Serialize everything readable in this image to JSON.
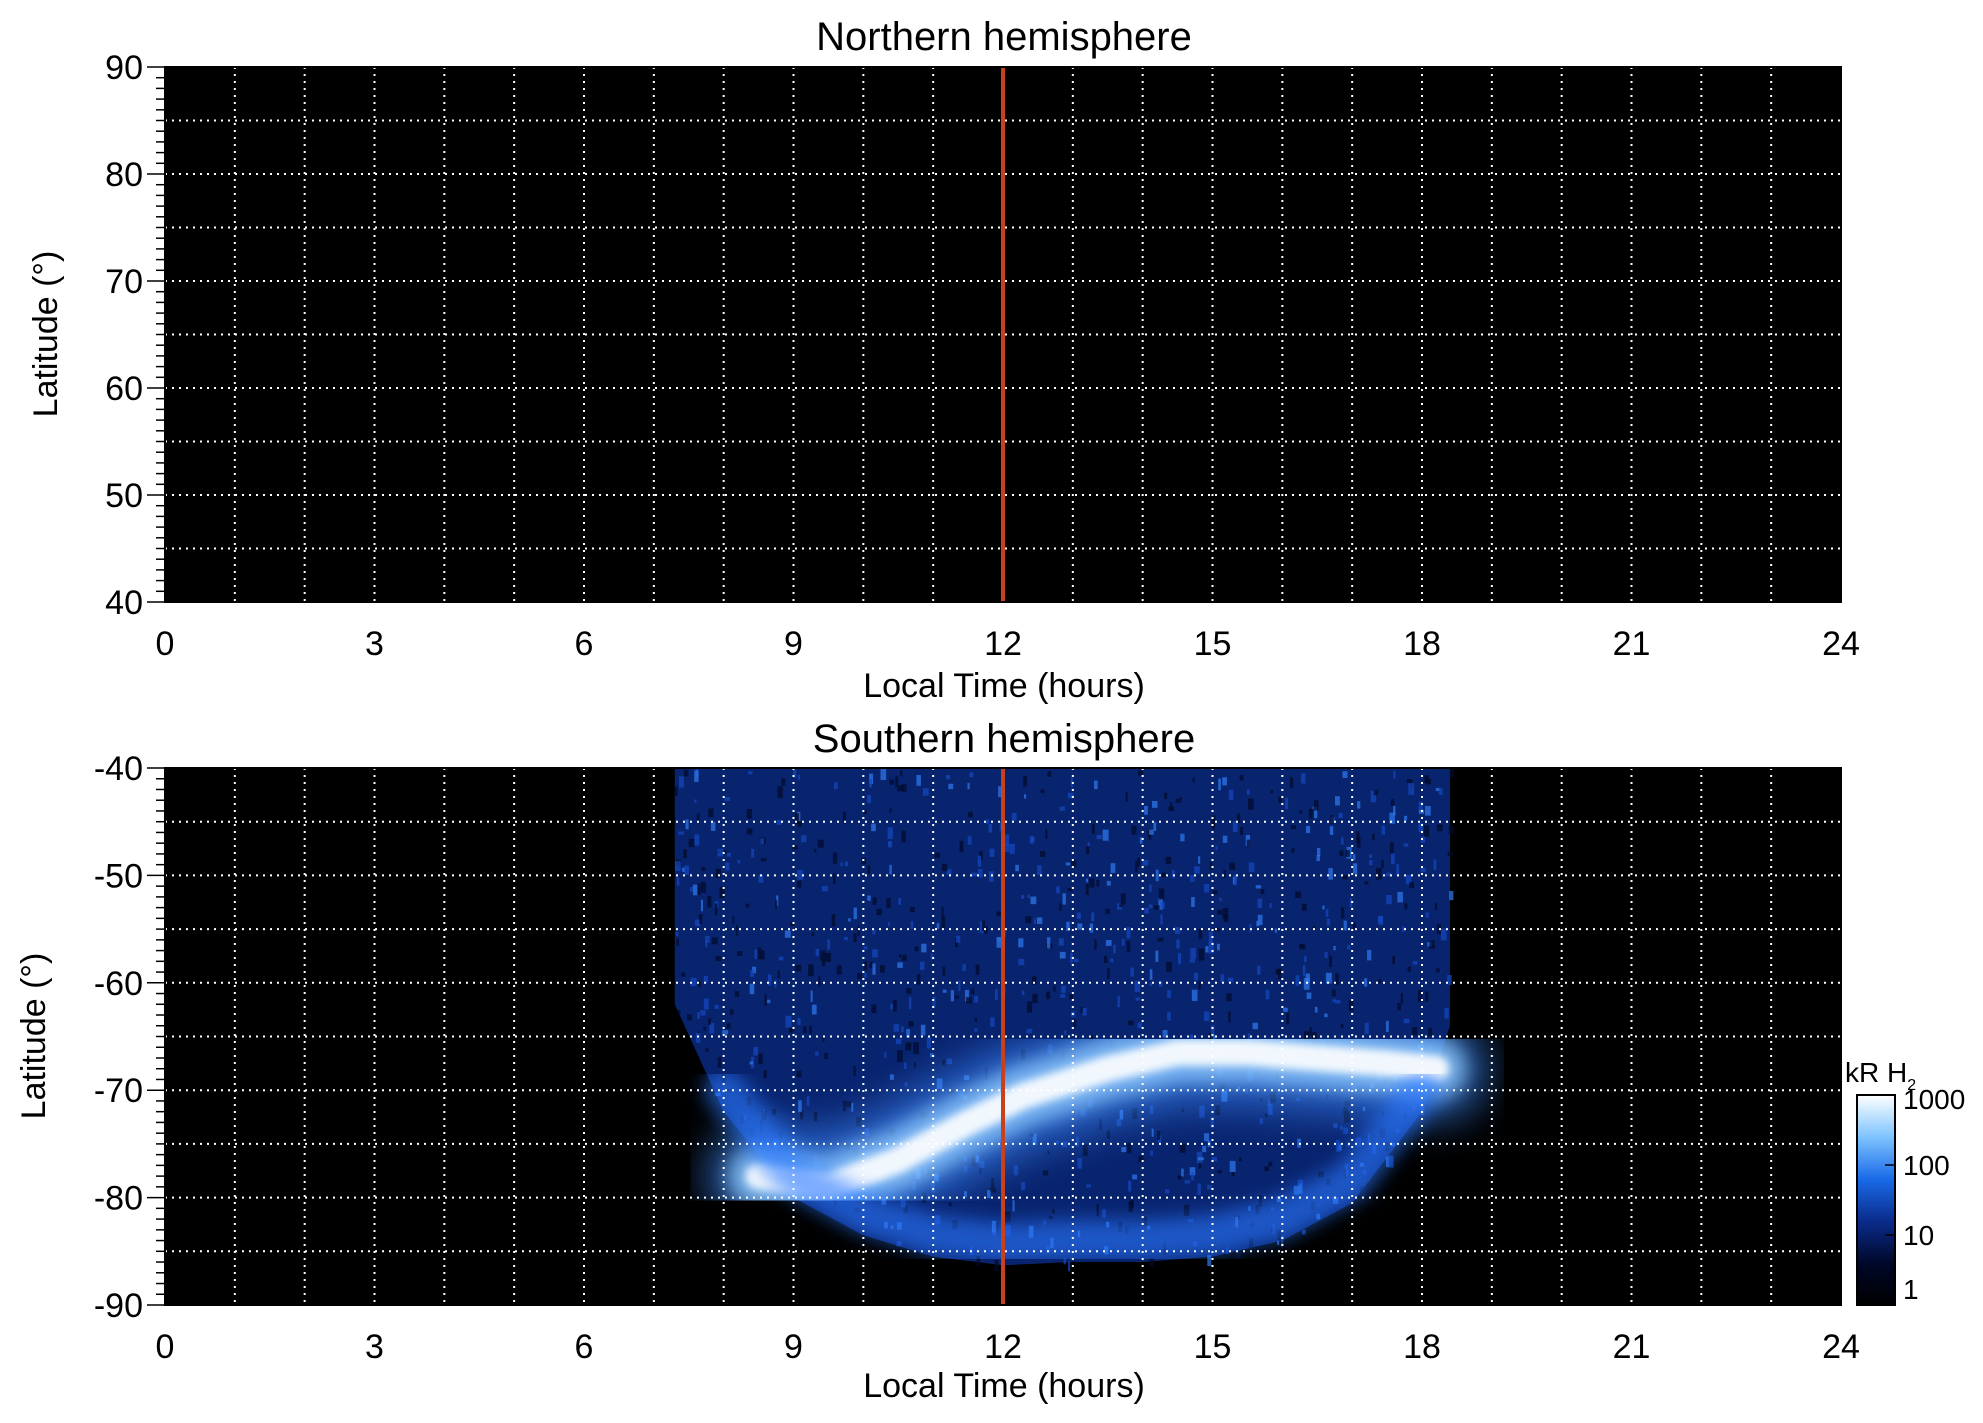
{
  "chart_data": [
    {
      "type": "heatmap",
      "title": "Northern hemisphere",
      "xlabel": "Local Time (hours)",
      "ylabel": "Latitude (°)",
      "xlim": [
        0,
        24
      ],
      "ylim": [
        40,
        90
      ],
      "x_ticks": [
        "0",
        "3",
        "6",
        "9",
        "12",
        "15",
        "18",
        "21",
        "24"
      ],
      "y_ticks": [
        "40",
        "50",
        "60",
        "70",
        "80",
        "90"
      ],
      "grid": true,
      "marker_line_local_time": 12,
      "marker_color": "#c8401c",
      "emission": "none"
    },
    {
      "type": "heatmap",
      "title": "Southern hemisphere",
      "xlabel": "Local Time (hours)",
      "ylabel": "Latitude (°)",
      "xlim": [
        0,
        24
      ],
      "ylim": [
        -90,
        -40
      ],
      "x_ticks": [
        "0",
        "3",
        "6",
        "9",
        "12",
        "15",
        "18",
        "21",
        "24"
      ],
      "y_ticks": [
        "-90",
        "-80",
        "-70",
        "-60",
        "-50",
        "-40"
      ],
      "grid": true,
      "marker_line_local_time": 12,
      "marker_color": "#c8401c",
      "coverage_local_time_range": [
        7.3,
        18.4
      ],
      "coverage_lower_latitude_edge": [
        [
          7.3,
          -62
        ],
        [
          8.0,
          -72
        ],
        [
          9.0,
          -80
        ],
        [
          10.0,
          -83.5
        ],
        [
          11.0,
          -85.5
        ],
        [
          12.0,
          -86.3
        ],
        [
          13.0,
          -86
        ],
        [
          14.0,
          -86
        ],
        [
          15.0,
          -85.5
        ],
        [
          16.0,
          -84
        ],
        [
          17.0,
          -80.5
        ],
        [
          18.0,
          -72
        ],
        [
          18.4,
          -64
        ]
      ],
      "auroral_oval_center": [
        [
          8.5,
          -78
        ],
        [
          9.5,
          -79
        ],
        [
          10.5,
          -76.5
        ],
        [
          11.5,
          -73
        ],
        [
          12.3,
          -70.5
        ],
        [
          13.5,
          -68
        ],
        [
          14.5,
          -66.5
        ],
        [
          15.5,
          -66.5
        ],
        [
          16.5,
          -67
        ],
        [
          17.5,
          -67.5
        ],
        [
          18.2,
          -68
        ]
      ],
      "auroral_peak_brightness_kR": 1000,
      "background_brightness_kR": 10
    }
  ],
  "colorbar": {
    "title": "kR H",
    "title_subscript": "2",
    "scale": "log",
    "ticks": [
      "1",
      "10",
      "100",
      "1000"
    ],
    "tick_values": [
      1,
      10,
      100,
      1000
    ],
    "colors": [
      "#000000",
      "#00082a",
      "#0a2c8c",
      "#1a6ae8",
      "#7ec4ff",
      "#ffffff"
    ]
  }
}
